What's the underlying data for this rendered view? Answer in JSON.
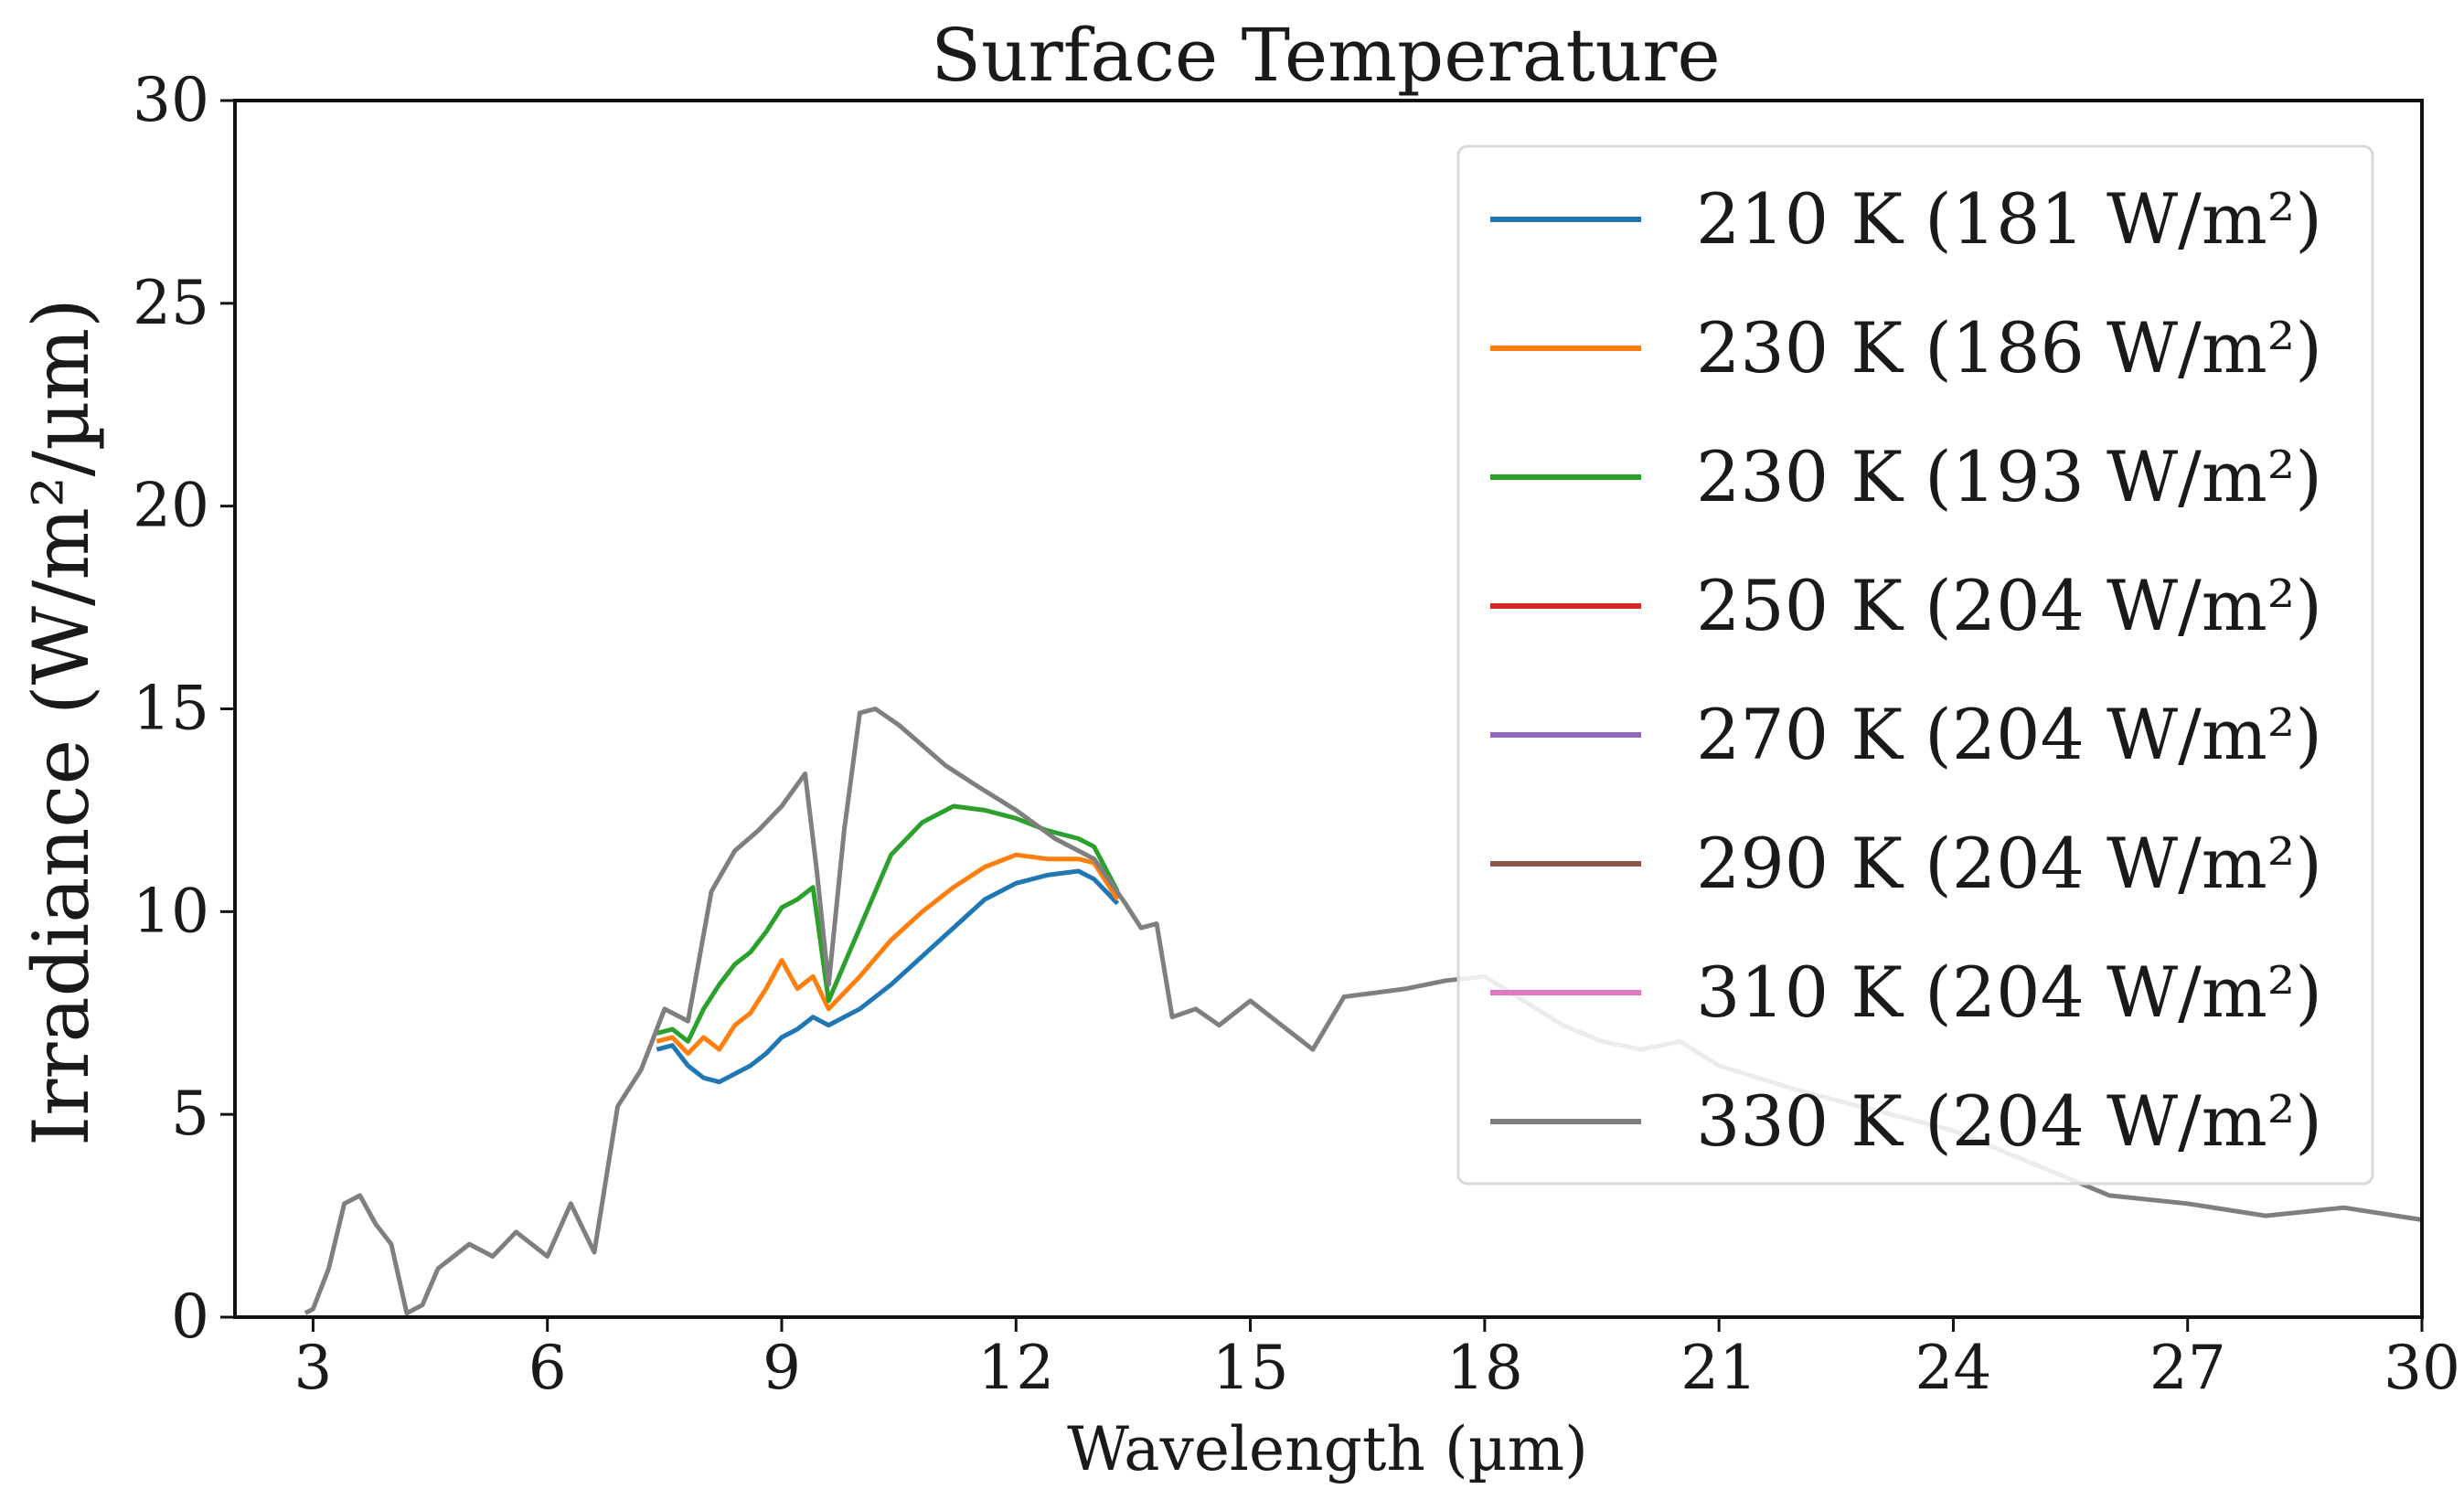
{
  "chart_data": {
    "type": "line",
    "title": "Surface Temperature",
    "xlabel": "Wavelength (µm)",
    "ylabel": "Irradiance (W/m²/µm)",
    "xlim": [
      2,
      30
    ],
    "ylim": [
      0,
      30
    ],
    "xticks": [
      3,
      6,
      9,
      12,
      15,
      18,
      21,
      24,
      27,
      30
    ],
    "yticks": [
      0,
      5,
      10,
      15,
      20,
      25,
      30
    ],
    "grid": false,
    "legend_position": "top-right",
    "series": [
      {
        "name": "210 K  (181 W/m²)",
        "color": "#1f77b4",
        "x": [
          7.4,
          7.6,
          7.8,
          8.0,
          8.2,
          8.4,
          8.6,
          8.8,
          9.0,
          9.2,
          9.4,
          9.6,
          9.8,
          10.0,
          10.4,
          10.8,
          11.2,
          11.6,
          12.0,
          12.4,
          12.8,
          13.0,
          13.3
        ],
        "y": [
          6.6,
          6.7,
          6.2,
          5.9,
          5.8,
          6.0,
          6.2,
          6.5,
          6.9,
          7.1,
          7.4,
          7.2,
          7.4,
          7.6,
          8.2,
          8.9,
          9.6,
          10.3,
          10.7,
          10.9,
          11.0,
          10.8,
          10.2
        ]
      },
      {
        "name": "230 K  (186 W/m²)",
        "color": "#ff7f0e",
        "x": [
          7.4,
          7.6,
          7.8,
          8.0,
          8.2,
          8.4,
          8.6,
          8.8,
          9.0,
          9.2,
          9.4,
          9.6,
          9.8,
          10.0,
          10.4,
          10.8,
          11.2,
          11.6,
          12.0,
          12.4,
          12.8,
          13.0,
          13.3
        ],
        "y": [
          6.8,
          6.9,
          6.5,
          6.9,
          6.6,
          7.2,
          7.5,
          8.1,
          8.8,
          8.1,
          8.4,
          7.6,
          8.0,
          8.4,
          9.3,
          10.0,
          10.6,
          11.1,
          11.4,
          11.3,
          11.3,
          11.2,
          10.3
        ]
      },
      {
        "name": "230 K  (193 W/m²)",
        "color": "#2ca02c",
        "x": [
          7.4,
          7.6,
          7.8,
          8.0,
          8.2,
          8.4,
          8.6,
          8.8,
          9.0,
          9.2,
          9.4,
          9.6,
          9.8,
          10.0,
          10.4,
          10.8,
          11.2,
          11.6,
          12.0,
          12.4,
          12.8,
          13.0,
          13.3
        ],
        "y": [
          7.0,
          7.1,
          6.8,
          7.6,
          8.2,
          8.7,
          9.0,
          9.5,
          10.1,
          10.3,
          10.6,
          7.8,
          8.7,
          9.6,
          11.4,
          12.2,
          12.6,
          12.5,
          12.3,
          12.0,
          11.8,
          11.6,
          10.5
        ]
      },
      {
        "name": "250 K  (204 W/m²)",
        "color": "#d62728",
        "x": [],
        "y": []
      },
      {
        "name": "270 K  (204 W/m²)",
        "color": "#9467bd",
        "x": [],
        "y": []
      },
      {
        "name": "290 K  (204 W/m²)",
        "color": "#8c564b",
        "x": [],
        "y": []
      },
      {
        "name": "310 K  (204 W/m²)",
        "color": "#e377c2",
        "x": [],
        "y": []
      },
      {
        "name": "330 K  (204 W/m²)",
        "color": "#7f7f7f",
        "x": [
          2.9,
          3.0,
          3.2,
          3.4,
          3.6,
          3.8,
          4.0,
          4.2,
          4.4,
          4.6,
          4.8,
          5.0,
          5.3,
          5.6,
          6.0,
          6.3,
          6.6,
          6.9,
          7.2,
          7.5,
          7.8,
          8.1,
          8.4,
          8.7,
          9.0,
          9.3,
          9.45,
          9.6,
          9.8,
          10.0,
          10.2,
          10.5,
          10.8,
          11.1,
          11.5,
          12.0,
          12.5,
          13.0,
          13.4,
          13.6,
          13.8,
          14.0,
          14.3,
          14.6,
          15.0,
          15.4,
          15.8,
          16.2,
          16.6,
          17.0,
          17.5,
          18.0,
          18.5,
          19.0,
          19.5,
          20.0,
          20.5,
          21.0,
          22.0,
          23.0,
          24.0,
          25.0,
          26.0,
          27.0,
          28.0,
          29.0,
          30.0
        ],
        "y": [
          0.1,
          0.2,
          1.2,
          2.8,
          3.0,
          2.3,
          1.8,
          0.1,
          0.3,
          1.2,
          1.5,
          1.8,
          1.5,
          2.1,
          1.5,
          2.8,
          1.6,
          5.2,
          6.1,
          7.6,
          7.3,
          10.5,
          11.5,
          12.0,
          12.6,
          13.4,
          11.0,
          8.2,
          12.0,
          14.9,
          15.0,
          14.6,
          14.1,
          13.6,
          13.1,
          12.5,
          11.8,
          11.3,
          10.2,
          9.6,
          9.7,
          7.4,
          7.6,
          7.2,
          7.8,
          7.2,
          6.6,
          7.9,
          8.0,
          8.1,
          8.3,
          8.4,
          7.8,
          7.2,
          6.8,
          6.6,
          6.8,
          6.2,
          5.6,
          5.1,
          4.6,
          3.8,
          3.0,
          2.8,
          2.5,
          2.7,
          2.4
        ]
      }
    ]
  }
}
